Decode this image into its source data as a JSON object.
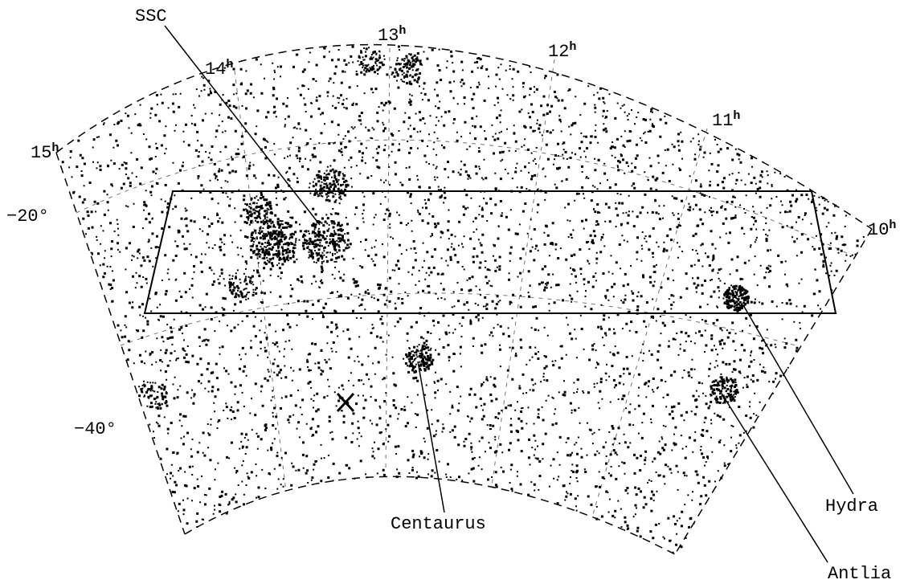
{
  "figure": {
    "ra_labels": [
      {
        "main": "15",
        "sup": "h"
      },
      {
        "main": "14",
        "sup": "h"
      },
      {
        "main": "13",
        "sup": "h"
      },
      {
        "main": "12",
        "sup": "h"
      },
      {
        "main": "11",
        "sup": "h"
      },
      {
        "main": "10",
        "sup": "h"
      }
    ],
    "dec_labels": [
      "−20°",
      "−40°"
    ],
    "annotations": [
      "SSC",
      "Centaurus",
      "Hydra",
      "Antlia"
    ]
  }
}
